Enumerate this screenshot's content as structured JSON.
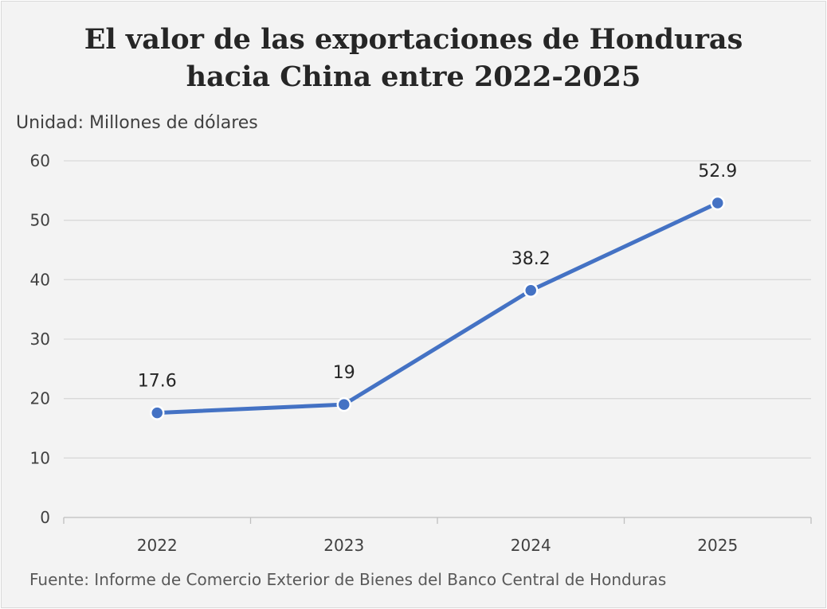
{
  "chart_data": {
    "type": "line",
    "title_lines": [
      "El valor de las exportaciones de Honduras",
      "hacia China entre 2022-2025"
    ],
    "unit_label": "Unidad: Millones de dólares",
    "source": "Fuente: Informe de Comercio Exterior de Bienes del Banco Central de Honduras",
    "categories": [
      "2022",
      "2023",
      "2024",
      "2025"
    ],
    "series": [
      {
        "values": [
          17.6,
          19,
          38.2,
          52.9
        ],
        "labels": [
          "17.6",
          "19",
          "38.2",
          "52.9"
        ]
      }
    ],
    "ylim": [
      0,
      60
    ],
    "yticks": [
      0,
      10,
      20,
      30,
      40,
      50,
      60
    ],
    "grid": true,
    "legend": "none",
    "line_color": "#4472c4",
    "grid_color": "#d9d9d9",
    "axis_color": "#bfbfbf"
  }
}
